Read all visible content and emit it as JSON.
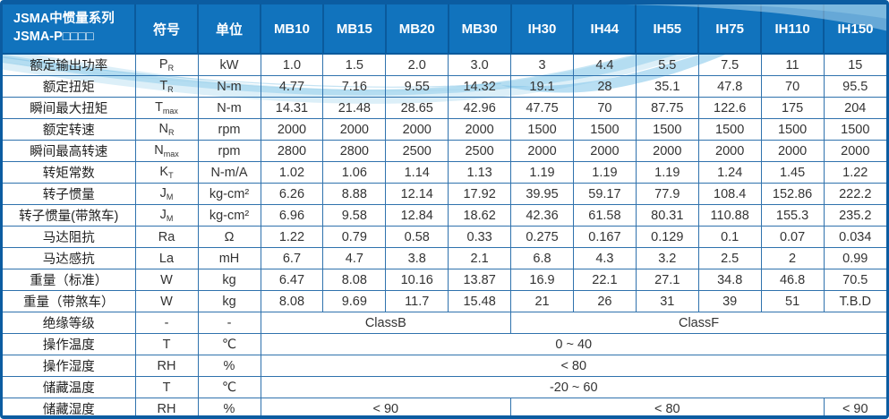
{
  "table": {
    "title_line1": "JSMA中惯量系列",
    "title_line2": "JSMA-P□□□□",
    "header": {
      "symbol": "符号",
      "unit": "单位",
      "models": [
        "MB10",
        "MB15",
        "MB20",
        "MB30",
        "IH30",
        "IH44",
        "IH55",
        "IH75",
        "IH110",
        "IH150"
      ]
    },
    "rows": [
      {
        "label": "额定输出功率",
        "symbol": "P",
        "sub": "R",
        "unit": "kW",
        "values": [
          "1.0",
          "1.5",
          "2.0",
          "3.0",
          "3",
          "4.4",
          "5.5",
          "7.5",
          "11",
          "15"
        ]
      },
      {
        "label": "额定扭矩",
        "symbol": "T",
        "sub": "R",
        "unit": "N-m",
        "values": [
          "4.77",
          "7.16",
          "9.55",
          "14.32",
          "19.1",
          "28",
          "35.1",
          "47.8",
          "70",
          "95.5"
        ]
      },
      {
        "label": "瞬间最大扭矩",
        "symbol": "T",
        "sub": "max",
        "unit": "N-m",
        "values": [
          "14.31",
          "21.48",
          "28.65",
          "42.96",
          "47.75",
          "70",
          "87.75",
          "122.6",
          "175",
          "204"
        ]
      },
      {
        "label": "额定转速",
        "symbol": "N",
        "sub": "R",
        "unit": "rpm",
        "values": [
          "2000",
          "2000",
          "2000",
          "2000",
          "1500",
          "1500",
          "1500",
          "1500",
          "1500",
          "1500"
        ]
      },
      {
        "label": "瞬间最高转速",
        "symbol": "N",
        "sub": "max",
        "unit": "rpm",
        "values": [
          "2800",
          "2800",
          "2500",
          "2500",
          "2000",
          "2000",
          "2000",
          "2000",
          "2000",
          "2000"
        ]
      },
      {
        "label": "转矩常数",
        "symbol": "K",
        "sub": "T",
        "unit": "N-m/A",
        "values": [
          "1.02",
          "1.06",
          "1.14",
          "1.13",
          "1.19",
          "1.19",
          "1.19",
          "1.24",
          "1.45",
          "1.22"
        ]
      },
      {
        "label": "转子惯量",
        "symbol": "J",
        "sub": "M",
        "unit": "kg-cm²",
        "values": [
          "6.26",
          "8.88",
          "12.14",
          "17.92",
          "39.95",
          "59.17",
          "77.9",
          "108.4",
          "152.86",
          "222.2"
        ]
      },
      {
        "label": "转子惯量(带煞车)",
        "symbol": "J",
        "sub": "M",
        "unit": "kg-cm²",
        "values": [
          "6.96",
          "9.58",
          "12.84",
          "18.62",
          "42.36",
          "61.58",
          "80.31",
          "110.88",
          "155.3",
          "235.2"
        ]
      },
      {
        "label": "马达阻抗",
        "symbol": "Ra",
        "sub": "",
        "unit": "Ω",
        "values": [
          "1.22",
          "0.79",
          "0.58",
          "0.33",
          "0.275",
          "0.167",
          "0.129",
          "0.1",
          "0.07",
          "0.034"
        ]
      },
      {
        "label": "马达感抗",
        "symbol": "La",
        "sub": "",
        "unit": "mH",
        "values": [
          "6.7",
          "4.7",
          "3.8",
          "2.1",
          "6.8",
          "4.3",
          "3.2",
          "2.5",
          "2",
          "0.99"
        ]
      },
      {
        "label": "重量（标准）",
        "symbol": "W",
        "sub": "",
        "unit": "kg",
        "values": [
          "6.47",
          "8.08",
          "10.16",
          "13.87",
          "16.9",
          "22.1",
          "27.1",
          "34.8",
          "46.8",
          "70.5"
        ]
      },
      {
        "label": "重量（带煞车）",
        "symbol": "W",
        "sub": "",
        "unit": "kg",
        "values": [
          "8.08",
          "9.69",
          "11.7",
          "15.48",
          "21",
          "26",
          "31",
          "39",
          "51",
          "T.B.D"
        ]
      },
      {
        "label": "绝缘等级",
        "symbol": "-",
        "sub": "",
        "unit": "-",
        "spans": [
          {
            "text": "ClassB",
            "cols": 4
          },
          {
            "text": "ClassF",
            "cols": 6
          }
        ]
      },
      {
        "label": "操作温度",
        "symbol": "T",
        "sub": "",
        "unit": "℃",
        "spans": [
          {
            "text": "0 ~ 40",
            "cols": 10
          }
        ]
      },
      {
        "label": "操作湿度",
        "symbol": "RH",
        "sub": "",
        "unit": "%",
        "spans": [
          {
            "text": "< 80",
            "cols": 10
          }
        ]
      },
      {
        "label": "储藏温度",
        "symbol": "T",
        "sub": "",
        "unit": "℃",
        "spans": [
          {
            "text": "-20 ~ 60",
            "cols": 10
          }
        ]
      },
      {
        "label": "储藏湿度",
        "symbol": "RH",
        "sub": "",
        "unit": "%",
        "spans": [
          {
            "text": "< 90",
            "cols": 4
          },
          {
            "text": "< 80",
            "cols": 5
          },
          {
            "text": "< 90",
            "cols": 1
          }
        ]
      }
    ],
    "colors": {
      "header_bg": "#1173bd",
      "header_separator": "#0a5a9c",
      "outer_border": "#0b5ca1",
      "grid_line": "#2f72ad",
      "swoosh_light": "#bfe1f3",
      "swoosh_mid": "#8ccbea",
      "swoosh_bright": "#74c0e7",
      "text": "#333333"
    }
  }
}
